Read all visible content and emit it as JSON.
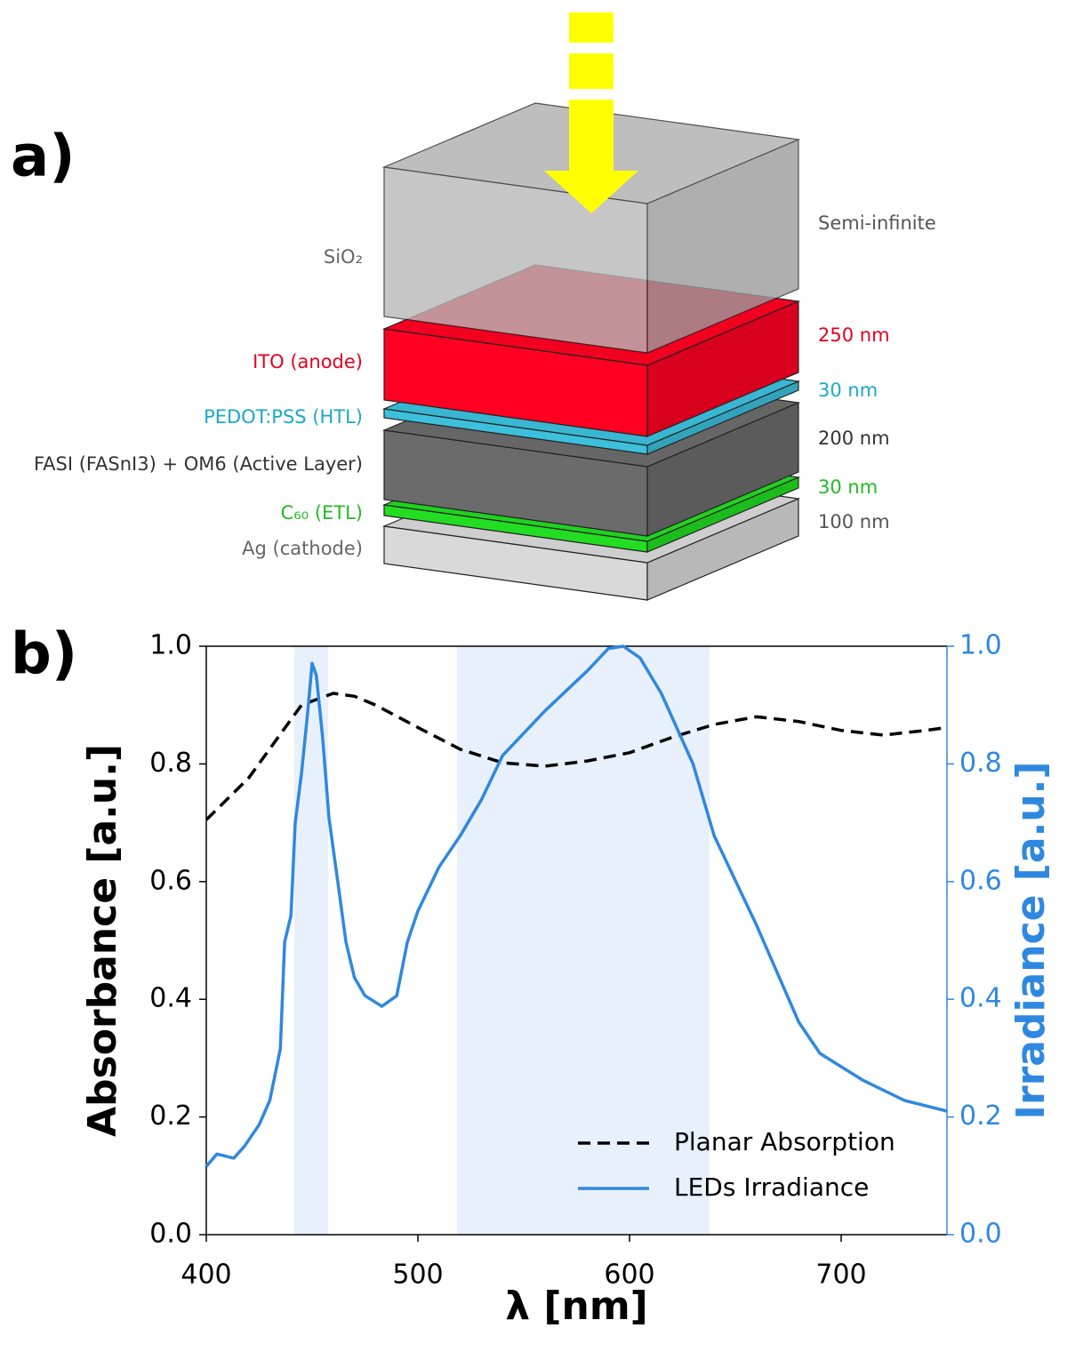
{
  "panel_a": {
    "label": "a)",
    "left_labels": [
      "SiO₂",
      "ITO (anode)",
      "PEDOT:PSS (HTL)",
      "FASI (FASnI3) + OM6 (Active Layer)",
      "C₆₀ (ETL)",
      "Ag (cathode)"
    ],
    "right_labels": [
      "Semi-infinite",
      "250 nm",
      "30 nm",
      "200 nm",
      "30 nm",
      "100 nm"
    ]
  },
  "chart_data": {
    "type": "line",
    "panel_label": "b)",
    "xlabel": "λ [nm]",
    "ylabel": "Absorbance [a.u.]",
    "y2label": "Irradiance [a.u.]",
    "xlim": [
      400,
      750
    ],
    "xticks": [
      400,
      500,
      600,
      700
    ],
    "ylim": [
      0,
      1
    ],
    "yticks": [
      {
        "value": 0,
        "label": "0.0"
      },
      0.2,
      0.4,
      0.6,
      0.8,
      {
        "value": 1,
        "label": "1.0"
      }
    ],
    "y2lim": [
      0,
      1
    ],
    "y2ticks": [
      {
        "value": 0,
        "label": "0.0"
      },
      0.2,
      0.4,
      0.6,
      0.8,
      {
        "value": 1,
        "label": "1.0"
      }
    ],
    "shaded_regions": [
      [
        441.6,
        457.6
      ],
      [
        518.5,
        637.8
      ]
    ],
    "shade_color": "#e8f0fb",
    "legend": "lower right",
    "series": [
      {
        "name": "Planar Absorption",
        "color": "#000000",
        "dashed": true,
        "x": [
          400,
          420,
          445,
          460,
          470,
          480,
          500,
          520,
          540,
          560,
          580,
          600,
          620,
          640,
          660,
          680,
          700,
          720,
          740,
          750
        ],
        "values": [
          0.705,
          0.776,
          0.9,
          0.92,
          0.915,
          0.9,
          0.862,
          0.825,
          0.802,
          0.796,
          0.805,
          0.819,
          0.845,
          0.867,
          0.88,
          0.872,
          0.857,
          0.849,
          0.857,
          0.862
        ]
      },
      {
        "name": "LEDs Irradiance",
        "color": "#2f88e0",
        "axis": "y2",
        "x": [
          400,
          405,
          413,
          418,
          425,
          430,
          435,
          437,
          440,
          442,
          445,
          448,
          450,
          452,
          455,
          458,
          462,
          466,
          470,
          475,
          483,
          490,
          495,
          500,
          510,
          520,
          530,
          540,
          560,
          580,
          590,
          597,
          605,
          615,
          630,
          640,
          660,
          680,
          690,
          710,
          730,
          750
        ],
        "values": [
          0.116,
          0.137,
          0.13,
          0.15,
          0.187,
          0.228,
          0.316,
          0.497,
          0.542,
          0.7,
          0.784,
          0.89,
          0.971,
          0.95,
          0.844,
          0.708,
          0.603,
          0.497,
          0.437,
          0.406,
          0.388,
          0.406,
          0.497,
          0.55,
          0.625,
          0.678,
          0.739,
          0.814,
          0.89,
          0.958,
          0.996,
          1.0,
          0.98,
          0.92,
          0.8,
          0.678,
          0.526,
          0.361,
          0.308,
          0.263,
          0.228,
          0.21
        ]
      }
    ]
  }
}
